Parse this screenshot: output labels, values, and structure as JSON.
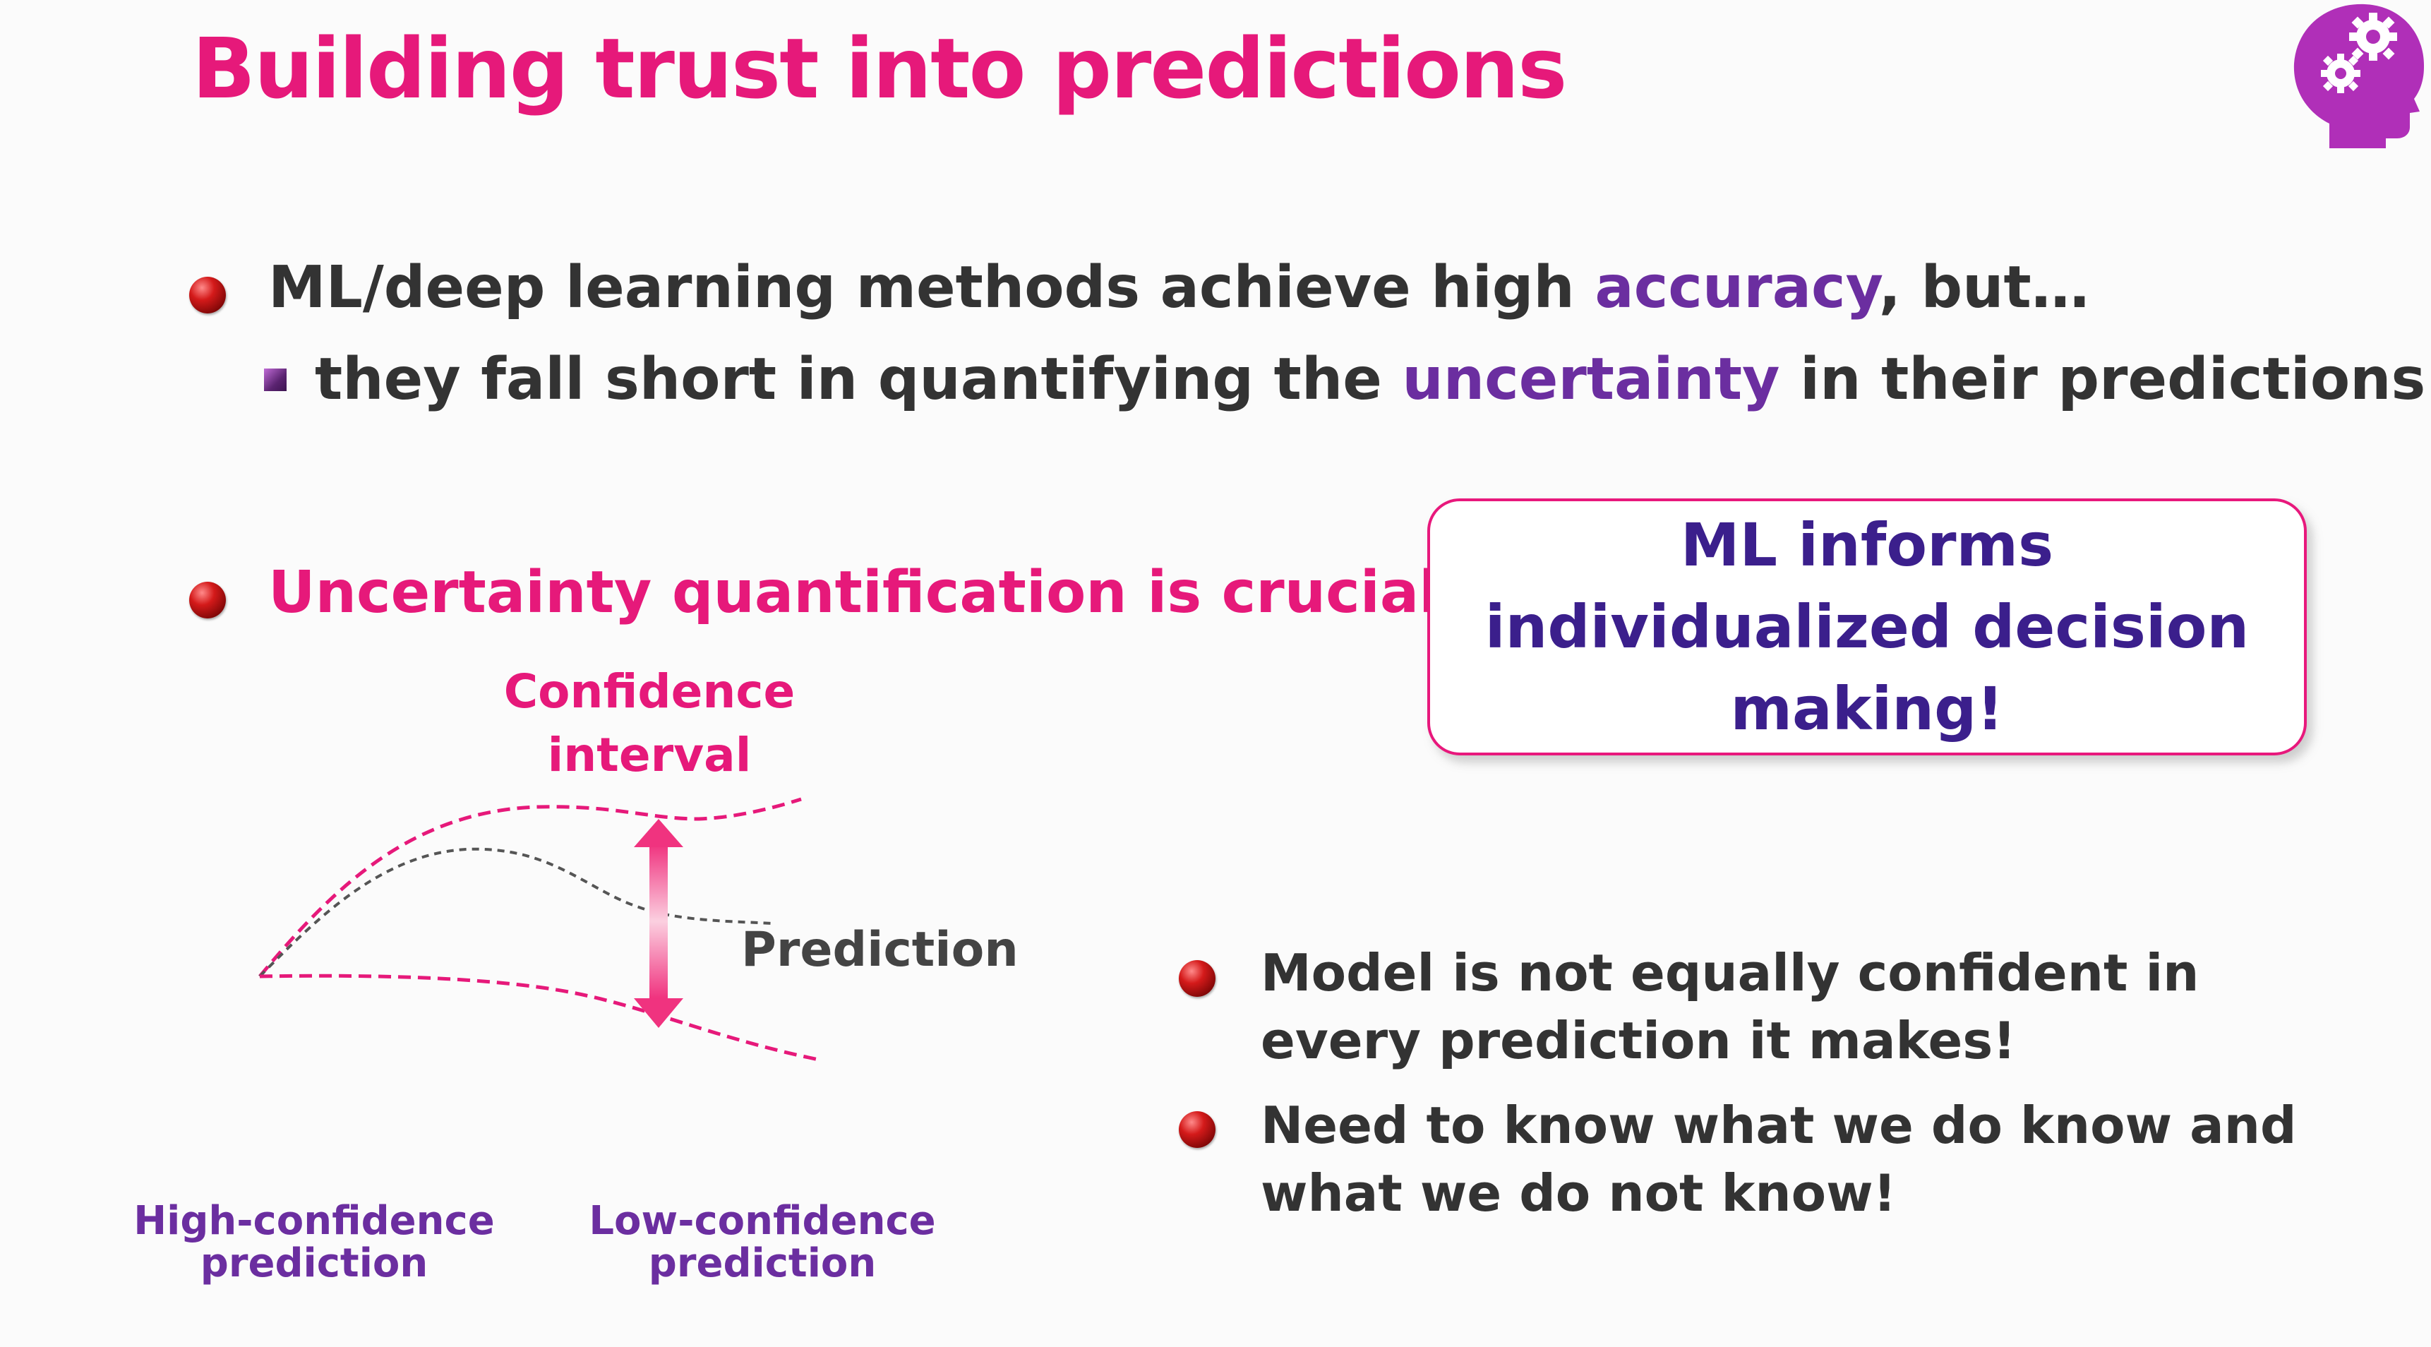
{
  "title": "Building trust into predictions",
  "bullets": {
    "line1_prefix": "ML/deep learning methods achieve high ",
    "line1_highlight": "accuracy",
    "line1_suffix": ", but…",
    "line2_prefix": "they fall short in quantifying the ",
    "line2_highlight": "uncertainty",
    "line2_suffix": " in their predictions!",
    "line3": "Uncertainty quantification is crucial"
  },
  "callout": {
    "text": "ML informs\nindividualized decision\nmaking!"
  },
  "diagram": {
    "confidence_label": "Confidence\ninterval",
    "prediction_label": "Prediction",
    "high_confidence_label": "High-confidence\nprediction",
    "low_confidence_label": "Low-confidence\nprediction"
  },
  "right_bullets": {
    "item1": "Model is not equally confident in\nevery prediction it makes!",
    "item2": "Need to know what we do know and\nwhat we do not know!"
  },
  "colors": {
    "title": "#e6197a",
    "highlight_purple": "#6b2ea0",
    "callout_border": "#e8187c",
    "callout_text": "#3b1f8c",
    "logo_purple": "#b02fb8"
  },
  "icons": {
    "logo": "head-with-gears-icon",
    "bullet": "red-ball-bullet-icon",
    "sub_bullet": "purple-square-bullet-icon",
    "arrow": "double-headed-arrow-icon"
  }
}
